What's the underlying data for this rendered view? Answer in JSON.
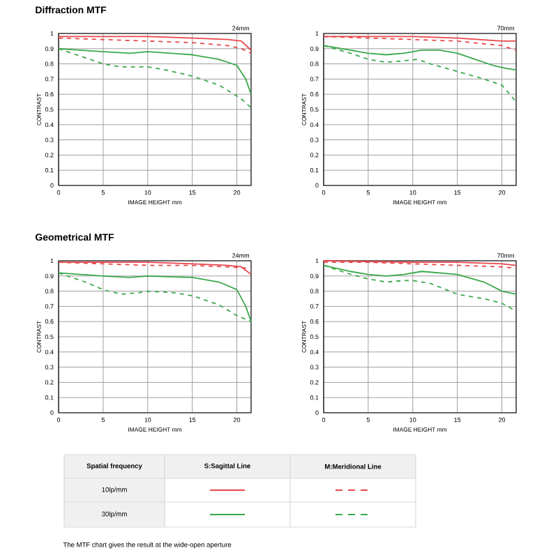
{
  "chart_data": [
    {
      "type": "line",
      "title": "Diffraction MTF",
      "subtitle": "24mm",
      "xlabel": "IMAGE HEIGHT  mm",
      "ylabel": "CONTRAST",
      "xlim": [
        0,
        21.6
      ],
      "ylim": [
        0,
        1
      ],
      "xticks": [
        0,
        5,
        10,
        15,
        20
      ],
      "yticks": [
        0,
        0.1,
        0.2,
        0.3,
        0.4,
        0.5,
        0.6,
        0.7,
        0.8,
        0.9,
        1
      ],
      "grid": true,
      "series": [
        {
          "color": "#e8464a",
          "line_style": "solid",
          "x": [
            0,
            5,
            10,
            15,
            19,
            20.5,
            21.6
          ],
          "values": [
            0.98,
            0.98,
            0.98,
            0.97,
            0.96,
            0.95,
            0.89
          ]
        },
        {
          "color": "#e8464a",
          "line_style": "dashed",
          "x": [
            0,
            5,
            10,
            15,
            19,
            20.5,
            21.6
          ],
          "values": [
            0.97,
            0.96,
            0.95,
            0.94,
            0.92,
            0.9,
            0.87
          ]
        },
        {
          "color": "#3aa84a",
          "line_style": "solid",
          "x": [
            0,
            5,
            8,
            10,
            15,
            18,
            20,
            21,
            21.6
          ],
          "values": [
            0.9,
            0.88,
            0.87,
            0.88,
            0.86,
            0.83,
            0.79,
            0.7,
            0.6
          ]
        },
        {
          "color": "#3aa84a",
          "line_style": "dashed",
          "x": [
            0,
            3,
            5,
            7,
            10,
            12,
            15,
            18,
            20.5,
            21.6
          ],
          "values": [
            0.9,
            0.84,
            0.8,
            0.78,
            0.78,
            0.76,
            0.72,
            0.66,
            0.57,
            0.51
          ]
        }
      ]
    },
    {
      "type": "line",
      "subtitle": "70mm",
      "xlabel": "IMAGE HEIGHT  mm",
      "ylabel": "CONTRAST",
      "xlim": [
        0,
        21.6
      ],
      "ylim": [
        0,
        1
      ],
      "xticks": [
        0,
        5,
        10,
        15,
        20
      ],
      "yticks": [
        0,
        0.1,
        0.2,
        0.3,
        0.4,
        0.5,
        0.6,
        0.7,
        0.8,
        0.9,
        1
      ],
      "grid": true,
      "series": [
        {
          "color": "#e8464a",
          "line_style": "solid",
          "x": [
            0,
            10,
            15,
            20,
            21.6
          ],
          "values": [
            0.98,
            0.98,
            0.97,
            0.95,
            0.95
          ]
        },
        {
          "color": "#e8464a",
          "line_style": "dashed",
          "x": [
            0,
            5,
            10,
            15,
            20,
            21.6
          ],
          "values": [
            0.98,
            0.97,
            0.96,
            0.95,
            0.92,
            0.89
          ]
        },
        {
          "color": "#3aa84a",
          "line_style": "solid",
          "x": [
            0,
            3,
            5,
            7,
            9,
            11,
            13,
            15,
            17,
            19,
            20.5,
            21.6
          ],
          "values": [
            0.92,
            0.89,
            0.87,
            0.86,
            0.87,
            0.89,
            0.89,
            0.87,
            0.83,
            0.79,
            0.77,
            0.76
          ]
        },
        {
          "color": "#3aa84a",
          "line_style": "dashed",
          "x": [
            0,
            3,
            5,
            7,
            9,
            10.5,
            12,
            15,
            18,
            20,
            21.6
          ],
          "values": [
            0.92,
            0.87,
            0.83,
            0.81,
            0.82,
            0.83,
            0.8,
            0.75,
            0.7,
            0.66,
            0.55
          ]
        }
      ]
    },
    {
      "type": "line",
      "title": "Geometrical MTF",
      "subtitle": "24mm",
      "xlabel": "IMAGE HEIGHT  mm",
      "ylabel": "CONTRAST",
      "xlim": [
        0,
        21.6
      ],
      "ylim": [
        0,
        1
      ],
      "xticks": [
        0,
        5,
        10,
        15,
        20
      ],
      "yticks": [
        0,
        0.1,
        0.2,
        0.3,
        0.4,
        0.5,
        0.6,
        0.7,
        0.8,
        0.9,
        1
      ],
      "grid": true,
      "series": [
        {
          "color": "#e8464a",
          "line_style": "solid",
          "x": [
            0,
            10,
            15,
            19,
            20.5,
            21.6
          ],
          "values": [
            0.99,
            0.99,
            0.98,
            0.97,
            0.96,
            0.91
          ]
        },
        {
          "color": "#e8464a",
          "line_style": "dashed",
          "x": [
            0,
            5,
            10,
            15,
            19,
            21.6
          ],
          "values": [
            0.99,
            0.98,
            0.97,
            0.97,
            0.96,
            0.95
          ]
        },
        {
          "color": "#3aa84a",
          "line_style": "solid",
          "x": [
            0,
            5,
            8,
            10,
            15,
            18,
            20,
            21,
            21.6
          ],
          "values": [
            0.92,
            0.9,
            0.89,
            0.9,
            0.89,
            0.86,
            0.81,
            0.7,
            0.6
          ]
        },
        {
          "color": "#3aa84a",
          "line_style": "dashed",
          "x": [
            0,
            3,
            5,
            7,
            9,
            10,
            13,
            15,
            18,
            20,
            21.6
          ],
          "values": [
            0.92,
            0.86,
            0.81,
            0.78,
            0.79,
            0.8,
            0.79,
            0.77,
            0.71,
            0.64,
            0.6
          ]
        }
      ]
    },
    {
      "type": "line",
      "subtitle": "70mm",
      "xlabel": "IMAGE HEIGHT  mm",
      "ylabel": "CONTRAST",
      "xlim": [
        0,
        21.6
      ],
      "ylim": [
        0,
        1
      ],
      "xticks": [
        0,
        5,
        10,
        15,
        20
      ],
      "yticks": [
        0,
        0.1,
        0.2,
        0.3,
        0.4,
        0.5,
        0.6,
        0.7,
        0.8,
        0.9,
        1
      ],
      "grid": true,
      "series": [
        {
          "color": "#e8464a",
          "line_style": "solid",
          "x": [
            0,
            10,
            15,
            20,
            21.6
          ],
          "values": [
            1,
            0.99,
            0.99,
            0.98,
            0.97
          ]
        },
        {
          "color": "#e8464a",
          "line_style": "dashed",
          "x": [
            0,
            5,
            10,
            15,
            20,
            21.6
          ],
          "values": [
            0.99,
            0.99,
            0.98,
            0.97,
            0.96,
            0.95
          ]
        },
        {
          "color": "#3aa84a",
          "line_style": "solid",
          "x": [
            0,
            3,
            5,
            7,
            9,
            11,
            13,
            15,
            18,
            20,
            21.6
          ],
          "values": [
            0.97,
            0.93,
            0.91,
            0.9,
            0.91,
            0.93,
            0.92,
            0.91,
            0.86,
            0.8,
            0.78
          ]
        },
        {
          "color": "#3aa84a",
          "line_style": "dashed",
          "x": [
            0,
            2.5,
            5,
            7,
            9,
            10,
            12,
            15,
            18,
            20,
            21.6
          ],
          "values": [
            0.97,
            0.92,
            0.88,
            0.86,
            0.87,
            0.87,
            0.85,
            0.78,
            0.75,
            0.72,
            0.67
          ]
        }
      ]
    },
    {
      "type": "other",
      "annotations": [
        "Spatial frequency",
        "S:Sagittal Line",
        "M:Meridional Line",
        "10lp/mm",
        "30lp/mm",
        "The MTF chart gives the result at the wide-open aperture"
      ]
    }
  ]
}
